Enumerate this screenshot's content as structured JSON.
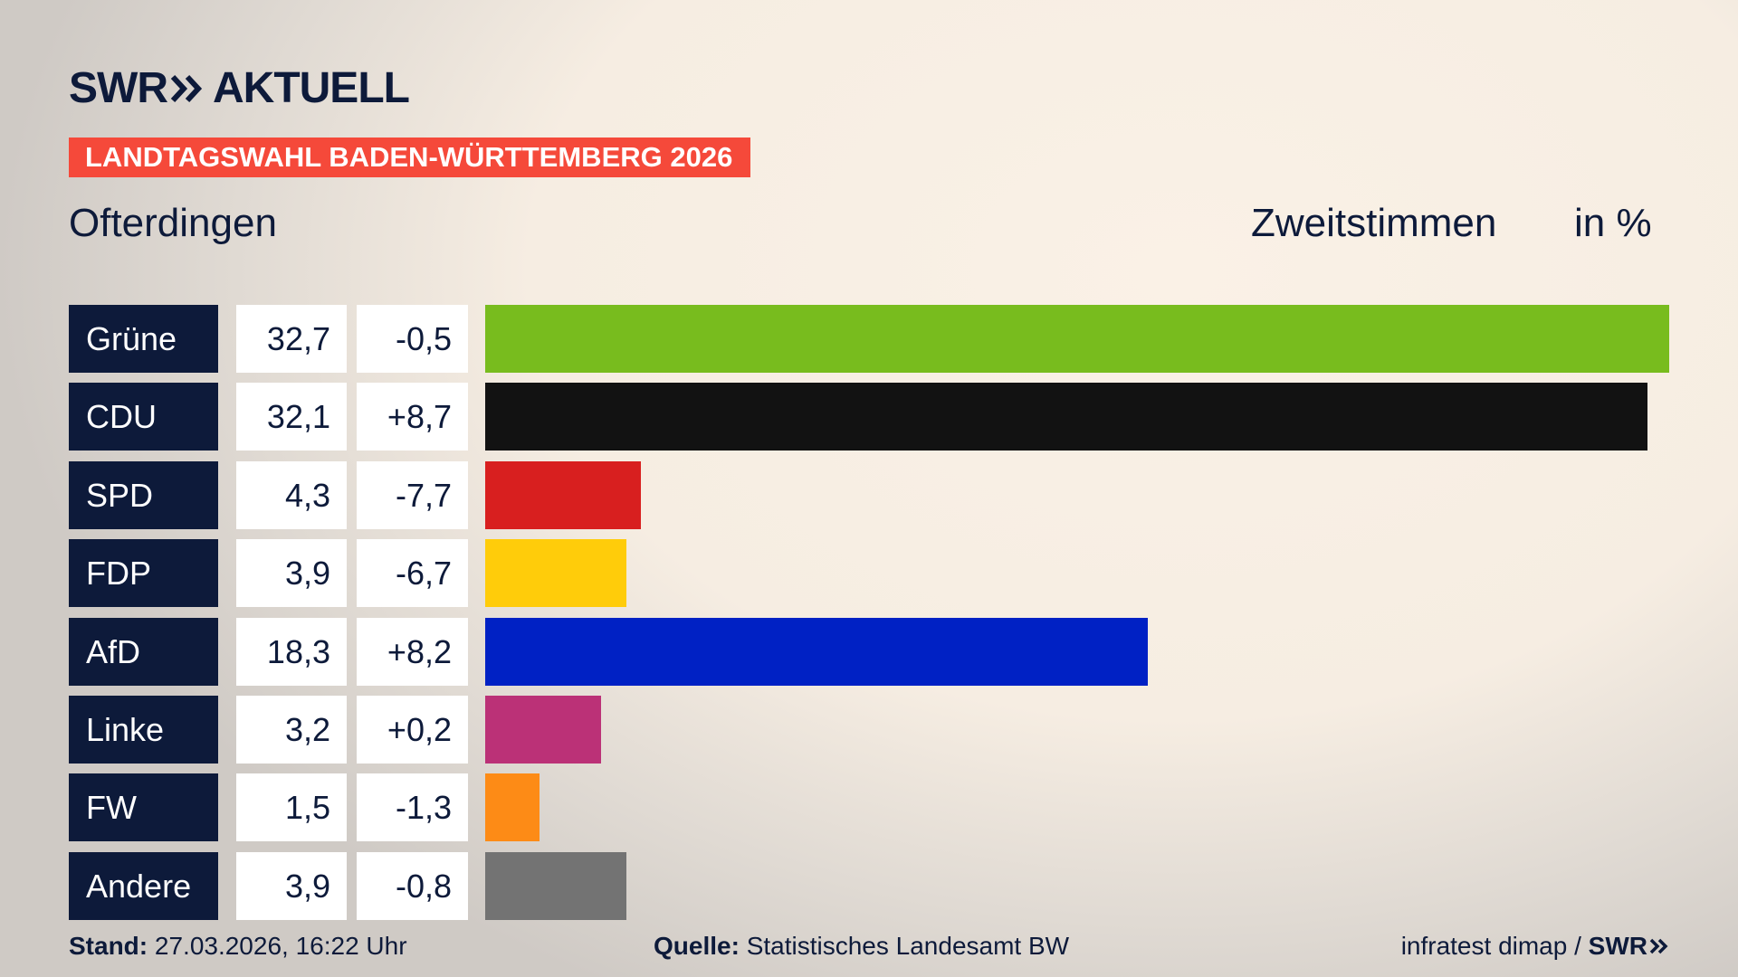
{
  "chart_data": {
    "type": "bar",
    "brand": "SWR",
    "program": "AKTUELL",
    "title": "LANDTAGSWAHL BADEN-WÜRTTEMBERG 2026",
    "subtitle": "Ofterdingen",
    "measure": "Zweitstimmen",
    "unit": "in %",
    "categories": [
      "Grüne",
      "CDU",
      "SPD",
      "FDP",
      "AfD",
      "Linke",
      "FW",
      "Andere"
    ],
    "values": [
      32.7,
      32.1,
      4.3,
      3.9,
      18.3,
      3.2,
      1.5,
      3.9
    ],
    "value_labels": [
      "32,7",
      "32,1",
      "4,3",
      "3,9",
      "18,3",
      "3,2",
      "1,5",
      "3,9"
    ],
    "changes": [
      "-0,5",
      "+8,7",
      "-7,7",
      "-6,7",
      "+8,2",
      "+0,2",
      "-1,3",
      "-0,8"
    ],
    "colors": [
      "#78bc1e",
      "#121212",
      "#d81f1f",
      "#ffcc0a",
      "#0021c4",
      "#bb3177",
      "#fd8b16",
      "#737373"
    ],
    "footer": {
      "stand_label": "Stand:",
      "stand": "27.03.2026, 16:22 Uhr",
      "source_label": "Quelle:",
      "source": "Statistisches Landesamt BW",
      "credit": "infratest dimap /",
      "credit_brand": "SWR"
    }
  }
}
